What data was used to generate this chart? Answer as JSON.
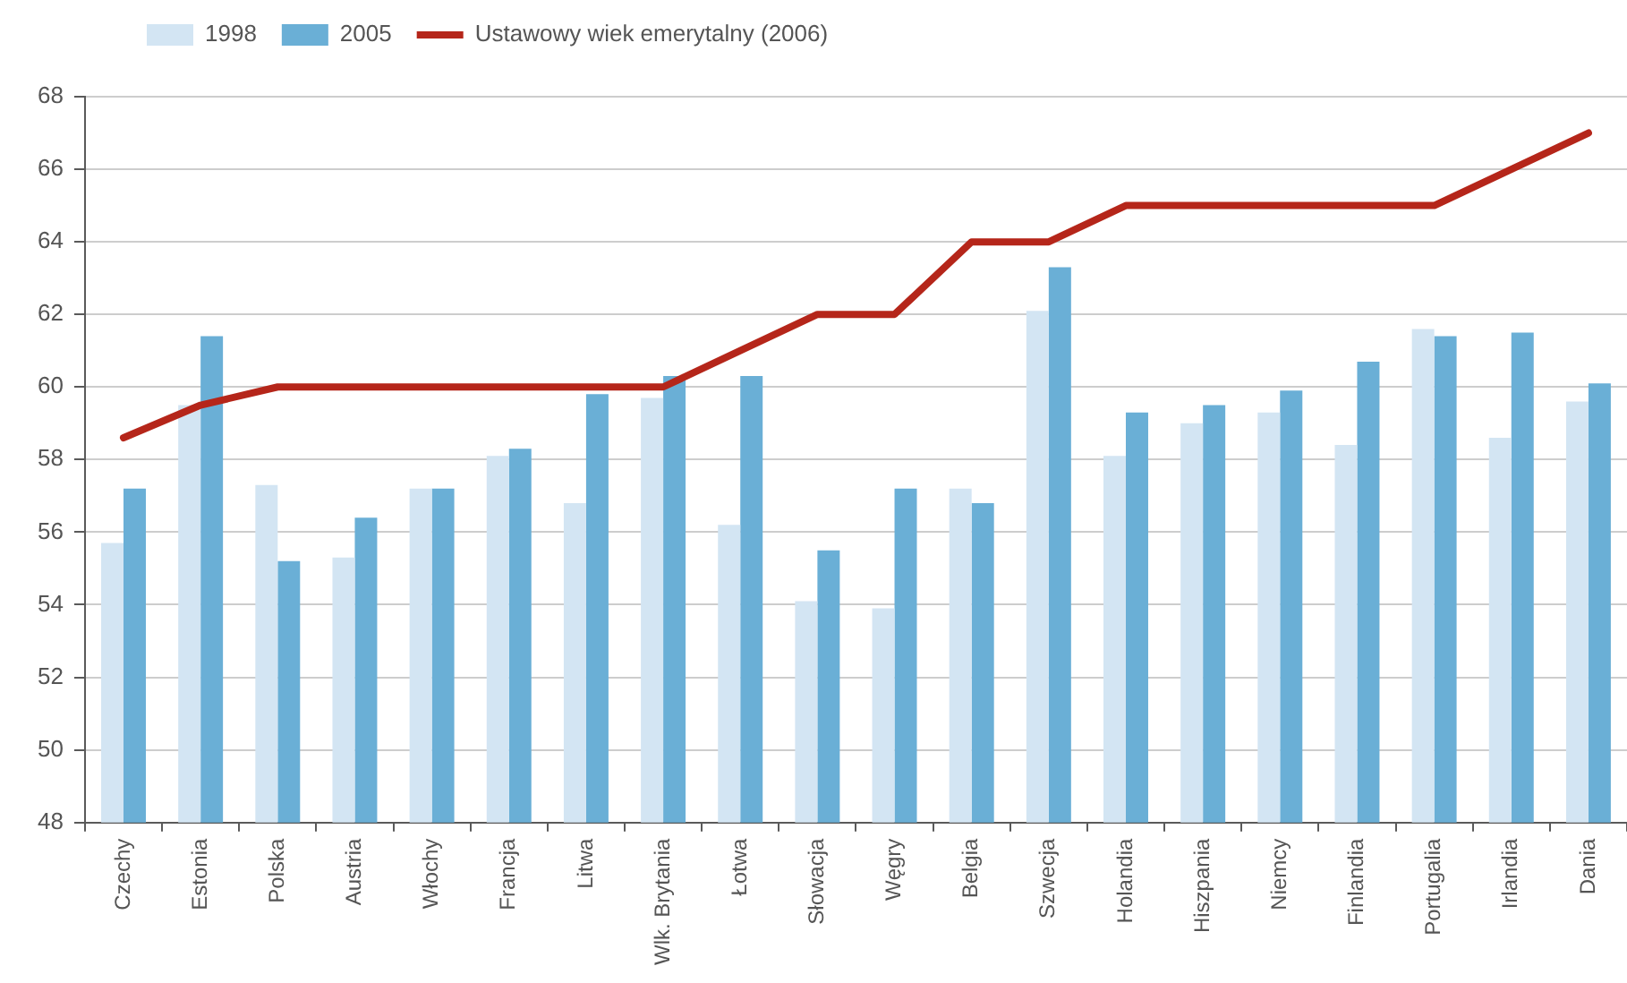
{
  "chart_data": {
    "type": "bar",
    "categories": [
      "Czechy",
      "Estonia",
      "Polska",
      "Austria",
      "Włochy",
      "Francja",
      "Litwa",
      "Wlk. Brytania",
      "Łotwa",
      "Słowacja",
      "Węgry",
      "Belgia",
      "Szwecja",
      "Holandia",
      "Hiszpania",
      "Niemcy",
      "Finlandia",
      "Portugalia",
      "Irlandia",
      "Dania"
    ],
    "series": [
      {
        "name": "1998",
        "color": "#d3e5f3",
        "values": [
          55.7,
          59.5,
          57.3,
          55.3,
          57.2,
          58.1,
          56.8,
          59.7,
          56.2,
          54.1,
          53.9,
          57.2,
          62.1,
          58.1,
          59.0,
          59.3,
          58.4,
          61.6,
          58.6,
          59.6
        ]
      },
      {
        "name": "2005",
        "color": "#6aafd6",
        "values": [
          57.2,
          61.4,
          55.2,
          56.4,
          57.2,
          58.3,
          59.8,
          60.3,
          60.3,
          55.5,
          57.2,
          56.8,
          63.3,
          59.3,
          59.5,
          59.9,
          60.7,
          61.4,
          61.5,
          60.1
        ]
      },
      {
        "name": "Ustawowy wiek emerytalny (2006)",
        "type": "line",
        "color": "#b5261a",
        "values": [
          58.6,
          59.5,
          60,
          60,
          60,
          60,
          60,
          60,
          61,
          62,
          62,
          64,
          64,
          65,
          65,
          65,
          65,
          65,
          66,
          67
        ]
      }
    ],
    "ylim": [
      48,
      68
    ],
    "yticks": [
      48,
      50,
      52,
      54,
      56,
      58,
      60,
      62,
      64,
      66,
      68
    ],
    "grid": "y",
    "legend": "top left"
  }
}
